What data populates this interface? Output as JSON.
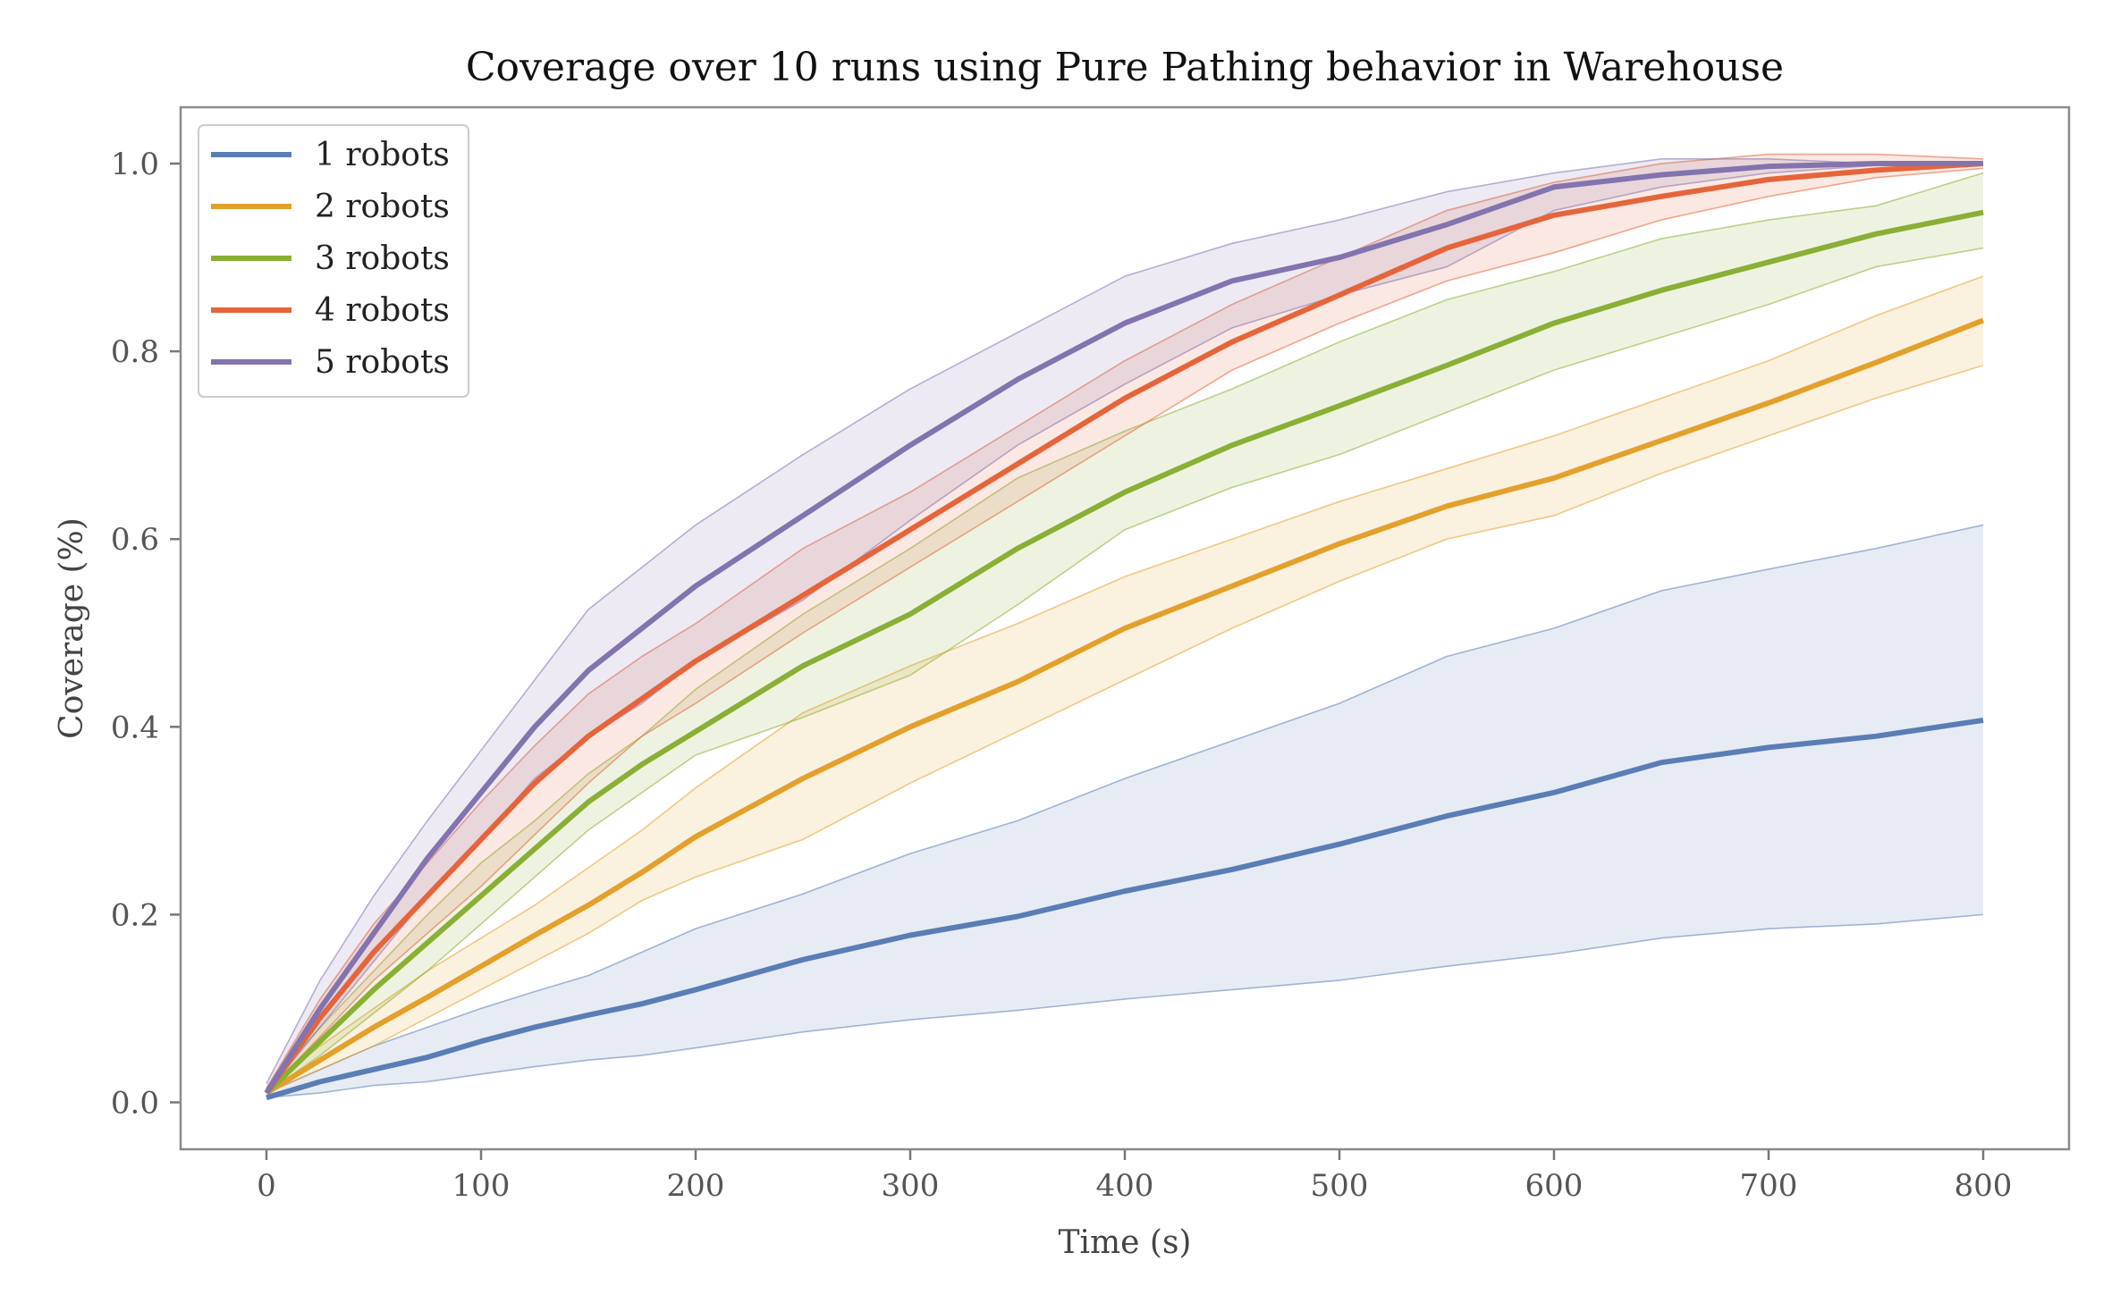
{
  "chart_data": {
    "type": "line",
    "title": "Coverage over 10 runs using Pure Pathing behavior in Warehouse",
    "xlabel": "Time (s)",
    "ylabel": "Coverage (%)",
    "xlim": [
      -40,
      840
    ],
    "ylim": [
      -0.05,
      1.06
    ],
    "xticks": [
      0,
      100,
      200,
      300,
      400,
      500,
      600,
      700,
      800
    ],
    "xtick_labels": [
      "0",
      "100",
      "200",
      "300",
      "400",
      "500",
      "600",
      "700",
      "800"
    ],
    "yticks": [
      0.0,
      0.2,
      0.4,
      0.6,
      0.8,
      1.0
    ],
    "ytick_labels": [
      "0.0",
      "0.2",
      "0.4",
      "0.6",
      "0.8",
      "1.0"
    ],
    "grid": false,
    "legend_position": "top-left",
    "x": [
      0,
      25,
      50,
      75,
      100,
      125,
      150,
      175,
      200,
      250,
      300,
      350,
      400,
      450,
      500,
      550,
      600,
      650,
      700,
      750,
      800
    ],
    "series": [
      {
        "name": "1 robots",
        "color": "#5b7db5",
        "mean": [
          0.005,
          0.022,
          0.035,
          0.048,
          0.065,
          0.08,
          0.093,
          0.105,
          0.12,
          0.152,
          0.178,
          0.198,
          0.225,
          0.248,
          0.275,
          0.305,
          0.33,
          0.362,
          0.378,
          0.39,
          0.407
        ],
        "lower": [
          0.005,
          0.01,
          0.018,
          0.022,
          0.03,
          0.038,
          0.045,
          0.05,
          0.058,
          0.075,
          0.088,
          0.098,
          0.11,
          0.12,
          0.13,
          0.145,
          0.158,
          0.175,
          0.185,
          0.19,
          0.2
        ],
        "upper": [
          0.01,
          0.035,
          0.06,
          0.08,
          0.1,
          0.118,
          0.135,
          0.16,
          0.185,
          0.222,
          0.265,
          0.3,
          0.345,
          0.385,
          0.425,
          0.475,
          0.505,
          0.545,
          0.568,
          0.59,
          0.615
        ]
      },
      {
        "name": "2 robots",
        "color": "#e3a02b",
        "mean": [
          0.01,
          0.045,
          0.08,
          0.112,
          0.145,
          0.178,
          0.21,
          0.245,
          0.283,
          0.345,
          0.4,
          0.448,
          0.505,
          0.55,
          0.595,
          0.635,
          0.665,
          0.705,
          0.745,
          0.788,
          0.833
        ],
        "lower": [
          0.01,
          0.035,
          0.06,
          0.09,
          0.12,
          0.15,
          0.18,
          0.215,
          0.24,
          0.28,
          0.34,
          0.395,
          0.45,
          0.505,
          0.555,
          0.6,
          0.625,
          0.67,
          0.71,
          0.75,
          0.785
        ],
        "upper": [
          0.015,
          0.06,
          0.1,
          0.14,
          0.175,
          0.21,
          0.25,
          0.29,
          0.335,
          0.415,
          0.465,
          0.51,
          0.56,
          0.6,
          0.64,
          0.675,
          0.71,
          0.75,
          0.79,
          0.838,
          0.88
        ]
      },
      {
        "name": "3 robots",
        "color": "#8aaf35",
        "mean": [
          0.01,
          0.065,
          0.12,
          0.17,
          0.22,
          0.27,
          0.32,
          0.36,
          0.395,
          0.465,
          0.52,
          0.59,
          0.65,
          0.7,
          0.742,
          0.785,
          0.83,
          0.865,
          0.895,
          0.925,
          0.948
        ],
        "lower": [
          0.01,
          0.05,
          0.095,
          0.14,
          0.19,
          0.24,
          0.29,
          0.33,
          0.37,
          0.41,
          0.455,
          0.53,
          0.61,
          0.655,
          0.69,
          0.735,
          0.78,
          0.815,
          0.85,
          0.89,
          0.91
        ],
        "upper": [
          0.015,
          0.08,
          0.14,
          0.2,
          0.255,
          0.3,
          0.35,
          0.39,
          0.44,
          0.52,
          0.59,
          0.665,
          0.715,
          0.76,
          0.81,
          0.855,
          0.885,
          0.92,
          0.94,
          0.955,
          0.99
        ]
      },
      {
        "name": "4 robots",
        "color": "#e6643a",
        "mean": [
          0.01,
          0.09,
          0.16,
          0.22,
          0.28,
          0.34,
          0.39,
          0.43,
          0.47,
          0.54,
          0.61,
          0.68,
          0.75,
          0.81,
          0.86,
          0.91,
          0.945,
          0.965,
          0.983,
          0.993,
          1.0
        ],
        "lower": [
          0.01,
          0.07,
          0.13,
          0.18,
          0.23,
          0.285,
          0.34,
          0.39,
          0.425,
          0.5,
          0.57,
          0.64,
          0.71,
          0.78,
          0.83,
          0.875,
          0.905,
          0.94,
          0.965,
          0.985,
          0.995
        ],
        "upper": [
          0.015,
          0.11,
          0.19,
          0.255,
          0.32,
          0.38,
          0.435,
          0.475,
          0.51,
          0.59,
          0.65,
          0.72,
          0.79,
          0.85,
          0.9,
          0.95,
          0.98,
          1.0,
          1.01,
          1.01,
          1.005
        ]
      },
      {
        "name": "5 robots",
        "color": "#8373ae",
        "mean": [
          0.01,
          0.1,
          0.18,
          0.26,
          0.33,
          0.4,
          0.46,
          0.505,
          0.55,
          0.625,
          0.7,
          0.77,
          0.83,
          0.875,
          0.9,
          0.935,
          0.975,
          0.988,
          0.997,
          1.0,
          1.0
        ],
        "lower": [
          0.01,
          0.08,
          0.15,
          0.22,
          0.28,
          0.345,
          0.39,
          0.425,
          0.47,
          0.535,
          0.62,
          0.7,
          0.765,
          0.825,
          0.86,
          0.89,
          0.95,
          0.975,
          0.99,
          0.998,
          1.0
        ],
        "upper": [
          0.02,
          0.13,
          0.22,
          0.3,
          0.375,
          0.45,
          0.525,
          0.57,
          0.615,
          0.69,
          0.76,
          0.82,
          0.88,
          0.915,
          0.94,
          0.97,
          0.99,
          1.005,
          1.005,
          1.0,
          1.0
        ]
      }
    ]
  }
}
